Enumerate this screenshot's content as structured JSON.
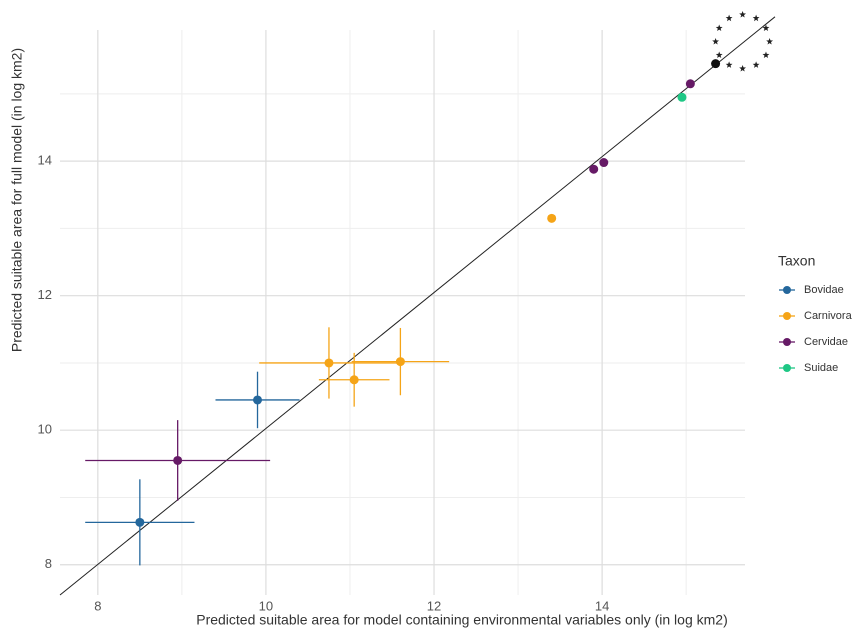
{
  "chart_data": {
    "type": "scatter",
    "x_label": "Predicted suitable area for model containing environmental variables only (in log km2)",
    "y_label": "Predicted suitable area for full model (in log km2)",
    "xlim": [
      7.55,
      15.7
    ],
    "ylim": [
      7.55,
      15.95
    ],
    "xticks": [
      8,
      10,
      12,
      14
    ],
    "yticks": [
      8,
      10,
      12,
      14
    ],
    "grid": true,
    "identity_line": true,
    "legend_title": "Taxon",
    "legend_position": "right",
    "series": [
      {
        "name": "Bovidae",
        "color": "#24679c",
        "x": [
          8.5,
          9.9
        ],
        "values": [
          8.63,
          10.45
        ],
        "xerr": [
          0.65,
          0.5
        ],
        "yerr": [
          0.64,
          0.42
        ]
      },
      {
        "name": "Carnivora",
        "color": "#f5a417",
        "x": [
          10.75,
          11.05,
          11.6,
          13.4
        ],
        "values": [
          11.0,
          10.75,
          11.02,
          13.15
        ],
        "xerr": [
          0.83,
          0.42,
          0.58,
          null
        ],
        "yerr": [
          0.53,
          0.4,
          0.5,
          null
        ]
      },
      {
        "name": "Cervidae",
        "color": "#661a66",
        "x": [
          8.95,
          13.9,
          14.02,
          15.05
        ],
        "values": [
          9.55,
          13.88,
          13.98,
          15.15
        ],
        "xerr": [
          1.1,
          null,
          null,
          null
        ],
        "yerr": [
          0.6,
          null,
          null,
          null
        ]
      },
      {
        "name": "Suidae",
        "color": "#1fc785",
        "x": [
          14.95
        ],
        "values": [
          14.95
        ],
        "xerr": [
          null
        ],
        "yerr": [
          null
        ]
      }
    ],
    "reference_point": {
      "x": 15.35,
      "y": 15.45,
      "color": "#111111"
    }
  }
}
